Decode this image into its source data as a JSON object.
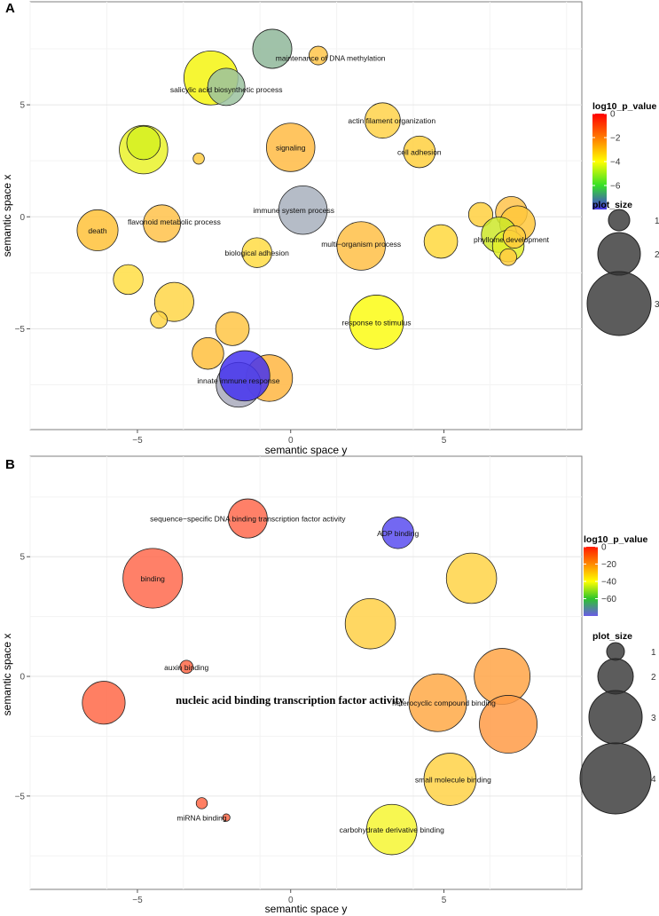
{
  "chart_data": [
    {
      "panel": "A",
      "type": "scatter",
      "xlabel": "semantic space y",
      "ylabel": "semantic space x",
      "xlim": [
        -8.5,
        9.5
      ],
      "ylim": [
        -9.5,
        9.6
      ],
      "xticks": [
        -5,
        0,
        5
      ],
      "yticks": [
        -5,
        0,
        5
      ],
      "color_scale": {
        "title": "log10_p_value",
        "min": -8,
        "max": 0,
        "ticks": [
          0,
          -2,
          -4,
          -6
        ],
        "stops": [
          "#4633e6",
          "#35e028",
          "#ffff00",
          "#ff7a00",
          "#ff0000"
        ]
      },
      "size_legend": {
        "title": "plot_size",
        "values": [
          1,
          2,
          3
        ]
      },
      "points": [
        {
          "x": -0.6,
          "y": 7.5,
          "size": 2.1,
          "color": "#8fb79a",
          "label": ""
        },
        {
          "x": 0.9,
          "y": 7.2,
          "size": 1.0,
          "color": "#ffc64a",
          "label": ""
        },
        {
          "x": -2.6,
          "y": 6.2,
          "size": 2.9,
          "color": "#f5f510",
          "label": ""
        },
        {
          "x": -2.1,
          "y": 5.8,
          "size": 2.0,
          "color": "#9bc29f",
          "label": ""
        },
        {
          "x": 3.0,
          "y": 4.3,
          "size": 1.9,
          "color": "#ffd24a",
          "label": ""
        },
        {
          "x": -4.8,
          "y": 3.0,
          "size": 2.6,
          "color": "#eaf22a",
          "label": ""
        },
        {
          "x": -4.8,
          "y": 3.3,
          "size": 1.8,
          "color": "#d5f021",
          "label": ""
        },
        {
          "x": -3.0,
          "y": 2.6,
          "size": 0.6,
          "color": "#ffcc44",
          "label": ""
        },
        {
          "x": 0.0,
          "y": 3.1,
          "size": 2.6,
          "color": "#ffbb44",
          "label": "signaling"
        },
        {
          "x": 4.2,
          "y": 2.9,
          "size": 1.7,
          "color": "#ffd040",
          "label": ""
        },
        {
          "x": 0.4,
          "y": 0.3,
          "size": 2.6,
          "color": "#a8b0bd",
          "label": ""
        },
        {
          "x": -6.3,
          "y": -0.6,
          "size": 2.2,
          "color": "#ffc23a",
          "label": "death"
        },
        {
          "x": -4.2,
          "y": -0.3,
          "size": 2.0,
          "color": "#ffc24a",
          "label": ""
        },
        {
          "x": 2.3,
          "y": -1.3,
          "size": 2.6,
          "color": "#ffbf46",
          "label": ""
        },
        {
          "x": -1.1,
          "y": -1.6,
          "size": 1.6,
          "color": "#ffdc44",
          "label": ""
        },
        {
          "x": 4.9,
          "y": -1.1,
          "size": 1.8,
          "color": "#ffd83e",
          "label": ""
        },
        {
          "x": 6.2,
          "y": 0.1,
          "size": 1.3,
          "color": "#ffd040",
          "label": ""
        },
        {
          "x": 7.2,
          "y": 0.2,
          "size": 1.7,
          "color": "#ffc34b",
          "label": ""
        },
        {
          "x": 7.4,
          "y": -0.3,
          "size": 1.9,
          "color": "#ffc73b",
          "label": ""
        },
        {
          "x": 6.8,
          "y": -0.8,
          "size": 1.9,
          "color": "#cde82a",
          "label": ""
        },
        {
          "x": 7.1,
          "y": -1.3,
          "size": 1.7,
          "color": "#e3f02a",
          "label": ""
        },
        {
          "x": 7.3,
          "y": -0.9,
          "size": 1.2,
          "color": "#ffcc3c",
          "label": ""
        },
        {
          "x": 7.1,
          "y": -1.8,
          "size": 0.9,
          "color": "#ffcc40",
          "label": ""
        },
        {
          "x": -5.3,
          "y": -2.8,
          "size": 1.6,
          "color": "#ffde44",
          "label": ""
        },
        {
          "x": -3.8,
          "y": -3.8,
          "size": 2.1,
          "color": "#ffd648",
          "label": ""
        },
        {
          "x": -4.3,
          "y": -4.6,
          "size": 0.9,
          "color": "#ffd648",
          "label": ""
        },
        {
          "x": 2.8,
          "y": -4.7,
          "size": 2.9,
          "color": "#fcfc14",
          "label": ""
        },
        {
          "x": -1.9,
          "y": -5.0,
          "size": 1.8,
          "color": "#ffc645",
          "label": ""
        },
        {
          "x": -2.7,
          "y": -6.1,
          "size": 1.7,
          "color": "#ffbf3e",
          "label": ""
        },
        {
          "x": -0.7,
          "y": -7.2,
          "size": 2.5,
          "color": "#ffb642",
          "label": ""
        },
        {
          "x": -1.7,
          "y": -7.5,
          "size": 2.4,
          "color": "#a9aabc",
          "label": ""
        },
        {
          "x": -1.5,
          "y": -7.1,
          "size": 2.7,
          "color": "#4433ee",
          "label": ""
        }
      ],
      "annotations": [
        {
          "text": "maintenance of DNA methylation",
          "x": 1.3,
          "y": 7.1
        },
        {
          "text": "salicylic acid biosynthetic process",
          "x": -2.1,
          "y": 5.7
        },
        {
          "text": "actin filament organization",
          "x": 3.3,
          "y": 4.3
        },
        {
          "text": "cell adhesion",
          "x": 4.2,
          "y": 2.9
        },
        {
          "text": "immune system process",
          "x": 0.1,
          "y": 0.3
        },
        {
          "text": "flavonoid metabolic process",
          "x": -3.8,
          "y": -0.2
        },
        {
          "text": "multi−organism process",
          "x": 2.3,
          "y": -1.2
        },
        {
          "text": "biological adhesion",
          "x": -1.1,
          "y": -1.6
        },
        {
          "text": "phyllome development",
          "x": 7.2,
          "y": -1.0
        },
        {
          "text": "response to stimulus",
          "x": 2.8,
          "y": -4.7
        },
        {
          "text": "innate immune response",
          "x": -1.7,
          "y": -7.3
        }
      ]
    },
    {
      "panel": "B",
      "type": "scatter",
      "xlabel": "semantic space y",
      "ylabel": "semantic space x",
      "xlim": [
        -8.5,
        9.5
      ],
      "ylim": [
        -8.9,
        9.2
      ],
      "xticks": [
        -5,
        0,
        5
      ],
      "yticks": [
        -5,
        0,
        5
      ],
      "color_scale": {
        "title": "log10_p_value",
        "min": -80,
        "max": 0,
        "ticks": [
          0,
          -20,
          -40,
          -60
        ],
        "stops": [
          "#6a5ae6",
          "#2ec52c",
          "#ffff00",
          "#ff8a00",
          "#ff1a00"
        ]
      },
      "size_legend": {
        "title": "plot_size",
        "values": [
          1,
          2,
          3,
          4
        ]
      },
      "points": [
        {
          "x": -1.4,
          "y": 6.6,
          "size": 2.1,
          "color": "#ff6a4e",
          "label": ""
        },
        {
          "x": 3.5,
          "y": 6.0,
          "size": 1.7,
          "color": "#5a4ef0",
          "label": ""
        },
        {
          "x": -4.5,
          "y": 4.1,
          "size": 3.2,
          "color": "#ff6a4e",
          "label": "binding"
        },
        {
          "x": 5.9,
          "y": 4.1,
          "size": 2.7,
          "color": "#ffd447",
          "label": ""
        },
        {
          "x": 2.6,
          "y": 2.2,
          "size": 2.7,
          "color": "#ffd046",
          "label": ""
        },
        {
          "x": -3.4,
          "y": 0.4,
          "size": 0.7,
          "color": "#ff6848",
          "label": ""
        },
        {
          "x": 6.9,
          "y": 0.0,
          "size": 3.0,
          "color": "#ffa546",
          "label": ""
        },
        {
          "x": -6.1,
          "y": -1.1,
          "size": 2.3,
          "color": "#ff6848",
          "label": ""
        },
        {
          "x": 4.8,
          "y": -1.1,
          "size": 3.1,
          "color": "#ffa947",
          "label": ""
        },
        {
          "x": 7.1,
          "y": -2.0,
          "size": 3.1,
          "color": "#ff9b46",
          "label": ""
        },
        {
          "x": 5.2,
          "y": -4.3,
          "size": 2.8,
          "color": "#ffd247",
          "label": ""
        },
        {
          "x": -2.9,
          "y": -5.3,
          "size": 0.6,
          "color": "#ff6848",
          "label": ""
        },
        {
          "x": -2.1,
          "y": -5.9,
          "size": 0.4,
          "color": "#ff6848",
          "label": ""
        },
        {
          "x": 3.3,
          "y": -6.4,
          "size": 2.7,
          "color": "#f6f632",
          "label": ""
        }
      ],
      "annotations": [
        {
          "text": "sequence−specific DNA binding transcription factor activity",
          "x": -1.4,
          "y": 6.6
        },
        {
          "text": "ADP binding",
          "x": 3.5,
          "y": 6.0
        },
        {
          "text": "auxin binding",
          "x": -3.4,
          "y": 0.4
        },
        {
          "text": "heterocyclic compound binding",
          "x": 5.0,
          "y": -1.1
        },
        {
          "text": "small molecule binding",
          "x": 5.3,
          "y": -4.3
        },
        {
          "text": "miRNA binding",
          "x": -2.9,
          "y": -5.9
        },
        {
          "text": "carbohydrate derivative binding",
          "x": 3.3,
          "y": -6.4
        }
      ],
      "overlay_text": "nucleic acid binding transcription factor activity"
    }
  ]
}
